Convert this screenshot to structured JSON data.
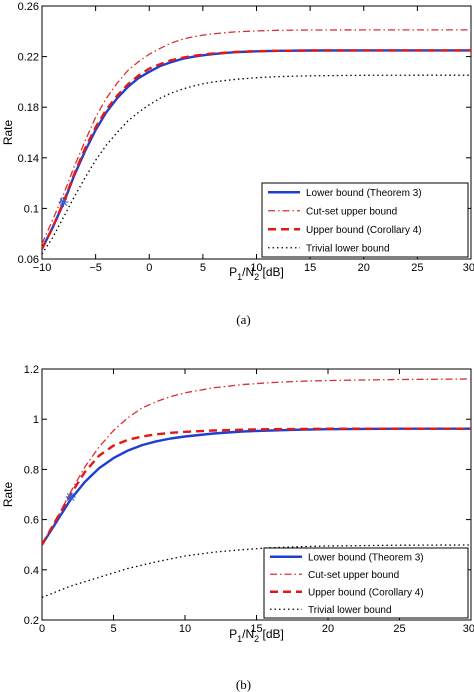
{
  "chart_data": [
    {
      "type": "line",
      "caption": "(a)",
      "xlabel": "P1/N2 [dB]",
      "ylabel": "Rate",
      "xlim": [
        -10,
        30
      ],
      "ylim": [
        0.06,
        0.26
      ],
      "xticks": [
        -10,
        -5,
        0,
        5,
        10,
        15,
        20,
        25,
        30
      ],
      "yticks": [
        0.06,
        0.1,
        0.14,
        0.18,
        0.22,
        0.26
      ],
      "legend_position": "bottom-right",
      "marker": {
        "x": -8,
        "y": 0.105,
        "symbol": "star",
        "color": "#2f5fd0"
      },
      "series": [
        {
          "name": "Lower bound (Theorem 3)",
          "style": "solid",
          "color": "#1f3fd0",
          "x": [
            -10,
            -9,
            -8,
            -7,
            -6,
            -5,
            -4,
            -3,
            -2,
            -1,
            0,
            1,
            2,
            3,
            4,
            5,
            6,
            7,
            8,
            10,
            12,
            15,
            20,
            25,
            30
          ],
          "y": [
            0.068,
            0.085,
            0.104,
            0.126,
            0.145,
            0.162,
            0.176,
            0.187,
            0.196,
            0.203,
            0.208,
            0.2125,
            0.2155,
            0.218,
            0.2198,
            0.221,
            0.222,
            0.2228,
            0.2235,
            0.2242,
            0.2246,
            0.2248,
            0.2249,
            0.2249,
            0.2249
          ]
        },
        {
          "name": "Cut-set upper bound",
          "style": "dashdot",
          "color": "#d93030",
          "x": [
            -10,
            -9,
            -8,
            -7,
            -6,
            -5,
            -4,
            -3,
            -2,
            -1,
            0,
            1,
            2,
            3,
            4,
            5,
            6,
            7,
            8,
            10,
            12,
            15,
            20,
            25,
            30
          ],
          "y": [
            0.072,
            0.091,
            0.111,
            0.133,
            0.153,
            0.172,
            0.187,
            0.199,
            0.209,
            0.216,
            0.222,
            0.2265,
            0.2305,
            0.2335,
            0.2355,
            0.237,
            0.238,
            0.2388,
            0.2395,
            0.2403,
            0.2408,
            0.241,
            0.2411,
            0.2411,
            0.2411
          ]
        },
        {
          "name": "Upper bound (Corollary 4)",
          "style": "dashed",
          "color": "#e01818",
          "x": [
            -10,
            -9,
            -8,
            -7,
            -6,
            -5,
            -4,
            -3,
            -2,
            -1,
            0,
            1,
            2,
            3,
            4,
            5,
            6,
            7,
            8,
            10,
            12,
            15,
            20,
            25,
            30
          ],
          "y": [
            0.068,
            0.085,
            0.105,
            0.127,
            0.147,
            0.164,
            0.178,
            0.189,
            0.198,
            0.205,
            0.2105,
            0.214,
            0.217,
            0.219,
            0.2205,
            0.2215,
            0.2225,
            0.223,
            0.2236,
            0.2243,
            0.2246,
            0.2248,
            0.2249,
            0.2249,
            0.2249
          ]
        },
        {
          "name": "Trivial lower bound",
          "style": "dotted",
          "color": "#000000",
          "x": [
            -10,
            -9,
            -8,
            -7,
            -6,
            -5,
            -4,
            -3,
            -2,
            -1,
            0,
            1,
            2,
            3,
            4,
            5,
            6,
            7,
            8,
            10,
            12,
            15,
            20,
            25,
            30
          ],
          "y": [
            0.064,
            0.077,
            0.093,
            0.109,
            0.124,
            0.138,
            0.15,
            0.16,
            0.169,
            0.176,
            0.182,
            0.187,
            0.191,
            0.194,
            0.1965,
            0.1985,
            0.2,
            0.201,
            0.202,
            0.2033,
            0.2042,
            0.2048,
            0.2052,
            0.2053,
            0.2053
          ]
        }
      ]
    },
    {
      "type": "line",
      "caption": "(b)",
      "xlabel": "P1/N2 [dB]",
      "ylabel": "Rate",
      "xlim": [
        0,
        30
      ],
      "ylim": [
        0.2,
        1.2
      ],
      "xticks": [
        0,
        5,
        10,
        15,
        20,
        25,
        30
      ],
      "yticks": [
        0.2,
        0.4,
        0.6,
        0.8,
        1,
        1.2
      ],
      "legend_position": "bottom-right",
      "marker": {
        "x": 2,
        "y": 0.69,
        "symbol": "star",
        "color": "#2f5fd0"
      },
      "series": [
        {
          "name": "Lower bound (Theorem 3)",
          "style": "solid",
          "color": "#1f3fd0",
          "x": [
            0,
            1,
            2,
            3,
            4,
            5,
            6,
            7,
            8,
            9,
            10,
            12,
            14,
            16,
            18,
            20,
            25,
            30
          ],
          "y": [
            0.5,
            0.59,
            0.68,
            0.75,
            0.805,
            0.845,
            0.875,
            0.897,
            0.912,
            0.923,
            0.931,
            0.943,
            0.951,
            0.955,
            0.958,
            0.96,
            0.962,
            0.962
          ]
        },
        {
          "name": "Cut-set upper bound",
          "style": "dashdot",
          "color": "#d93030",
          "x": [
            0,
            1,
            2,
            3,
            4,
            5,
            6,
            7,
            8,
            9,
            10,
            12,
            14,
            16,
            18,
            20,
            25,
            30
          ],
          "y": [
            0.5,
            0.6,
            0.71,
            0.81,
            0.89,
            0.955,
            1.005,
            1.045,
            1.07,
            1.09,
            1.105,
            1.125,
            1.138,
            1.146,
            1.151,
            1.154,
            1.158,
            1.16
          ]
        },
        {
          "name": "Upper bound (Corollary 4)",
          "style": "dashed",
          "color": "#e01818",
          "x": [
            0,
            1,
            2,
            3,
            4,
            5,
            6,
            7,
            8,
            9,
            10,
            12,
            14,
            16,
            18,
            20,
            25,
            30
          ],
          "y": [
            0.5,
            0.6,
            0.7,
            0.79,
            0.855,
            0.895,
            0.918,
            0.931,
            0.94,
            0.946,
            0.95,
            0.955,
            0.958,
            0.96,
            0.961,
            0.962,
            0.962,
            0.962
          ]
        },
        {
          "name": "Trivial lower bound",
          "style": "dotted",
          "color": "#000000",
          "x": [
            0,
            2,
            4,
            6,
            8,
            10,
            12,
            14,
            16,
            18,
            20,
            25,
            30
          ],
          "y": [
            0.29,
            0.335,
            0.37,
            0.405,
            0.432,
            0.455,
            0.47,
            0.48,
            0.488,
            0.492,
            0.495,
            0.498,
            0.499
          ]
        }
      ]
    }
  ]
}
